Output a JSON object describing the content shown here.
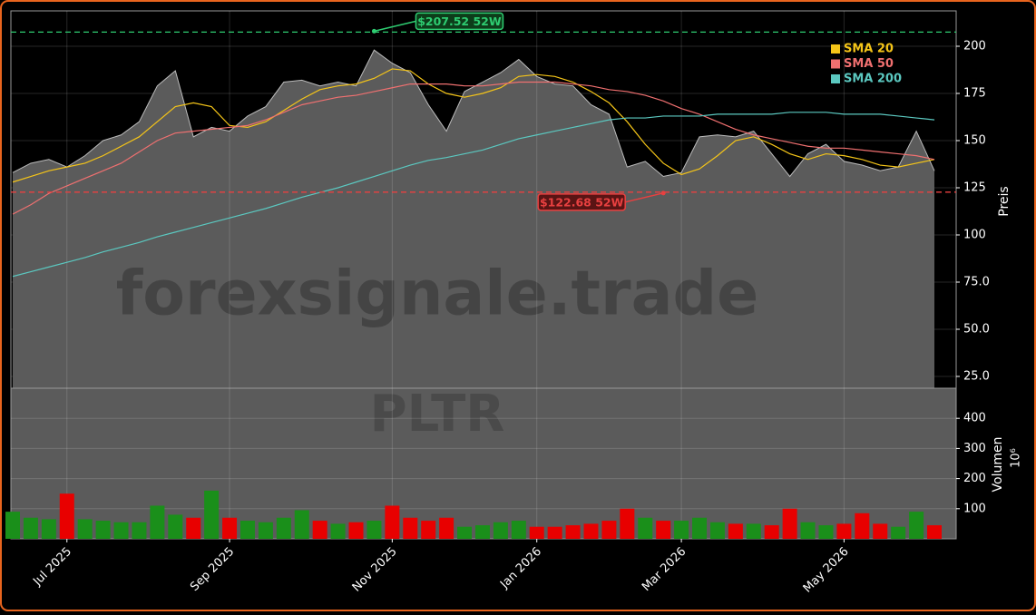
{
  "chart_data": {
    "type": "area",
    "title": "PLTR",
    "watermark": "forexsignale.trade",
    "ylabel": "Preis",
    "color": "#5b5b5b",
    "grid": true,
    "legend": "upper right",
    "categories": [
      null,
      null,
      null,
      "Jul 2025",
      null,
      null,
      null,
      null,
      null,
      null,
      null,
      null,
      "Sep 2025",
      null,
      null,
      null,
      null,
      null,
      null,
      null,
      null,
      "Nov 2025",
      null,
      null,
      null,
      null,
      null,
      null,
      null,
      "Jan 2026",
      null,
      null,
      null,
      null,
      null,
      null,
      null,
      "Mar 2026",
      null,
      null,
      null,
      null,
      null,
      null,
      null,
      null,
      "May 2026",
      null,
      null,
      null,
      null,
      null
    ],
    "values": [
      133,
      138,
      140,
      136,
      142,
      150,
      153,
      160,
      179,
      187,
      152,
      157,
      155,
      163,
      168,
      181,
      182,
      179,
      181,
      179,
      198,
      191,
      186,
      169,
      155,
      176,
      181,
      186,
      193,
      184,
      180,
      179,
      169,
      164,
      136,
      139,
      131,
      133,
      152,
      153,
      152,
      155,
      143,
      131,
      143,
      148,
      139,
      137,
      134,
      136,
      155,
      134
    ],
    "ylim": [
      18.75,
      218.75
    ],
    "yticks": [
      {
        "value": 25,
        "label": "25.0"
      },
      {
        "value": 50,
        "label": "50.0"
      },
      {
        "value": 75,
        "label": "75.0"
      },
      100,
      125,
      150,
      175,
      200
    ],
    "series": [
      {
        "name": "SMA 20",
        "color": "#f5c518",
        "values": [
          128,
          131,
          134,
          136,
          138,
          142,
          147,
          152,
          160,
          168,
          170,
          168,
          158,
          157,
          160,
          166,
          172,
          177,
          179,
          180,
          183,
          188,
          187,
          180,
          175,
          173,
          175,
          178,
          184,
          185,
          184,
          181,
          176,
          170,
          160,
          148,
          138,
          132,
          135,
          142,
          150,
          152,
          148,
          143,
          140,
          143,
          142,
          140,
          137,
          136,
          138,
          140
        ]
      },
      {
        "name": "SMA 50",
        "color": "#f07070",
        "values": [
          111,
          116,
          122,
          126,
          130,
          134,
          138,
          144,
          150,
          154,
          155,
          156,
          157,
          158,
          161,
          165,
          169,
          171,
          173,
          174,
          176,
          178,
          180,
          180,
          180,
          179,
          179,
          180,
          181,
          181,
          181,
          180,
          179,
          177,
          176,
          174,
          171,
          167,
          164,
          160,
          156,
          153,
          151,
          149,
          147,
          146,
          146,
          145,
          144,
          143,
          142,
          140
        ]
      },
      {
        "name": "SMA 200",
        "color": "#5bc8c0",
        "values": [
          78,
          80.5,
          83,
          85.5,
          88,
          91,
          93.5,
          96,
          99,
          101.5,
          104,
          106.5,
          109,
          111.5,
          114,
          117,
          120,
          122.5,
          125,
          128,
          131,
          134,
          137,
          139.5,
          141,
          143,
          145,
          148,
          151,
          153,
          155,
          157,
          159,
          161,
          162,
          162,
          163,
          163,
          163,
          164,
          164,
          164,
          164,
          165,
          165,
          165,
          164,
          164,
          164,
          163,
          162,
          161
        ]
      }
    ],
    "annotations": [
      {
        "value": 207.52,
        "label": "$207.52 52W",
        "color": "#2ecc71"
      },
      {
        "value": 122.68,
        "label": "$122.68 52W",
        "color": "#e84040"
      }
    ],
    "volume": {
      "type": "bar",
      "ylabel": "Volumen",
      "unit": "10⁶",
      "up_color": "#1a8f1a",
      "down_color": "#e80000",
      "values": [
        90,
        70,
        65,
        150,
        65,
        60,
        55,
        55,
        110,
        80,
        70,
        160,
        70,
        60,
        55,
        70,
        95,
        60,
        50,
        55,
        60,
        110,
        70,
        60,
        70,
        40,
        45,
        55,
        60,
        40,
        40,
        45,
        50,
        60,
        100,
        70,
        60,
        60,
        70,
        55,
        50,
        50,
        45,
        100,
        55,
        45,
        50,
        85,
        50,
        40,
        90,
        45
      ],
      "ylim": [
        0,
        500
      ],
      "yticks": [
        100,
        200,
        300,
        400
      ]
    }
  }
}
